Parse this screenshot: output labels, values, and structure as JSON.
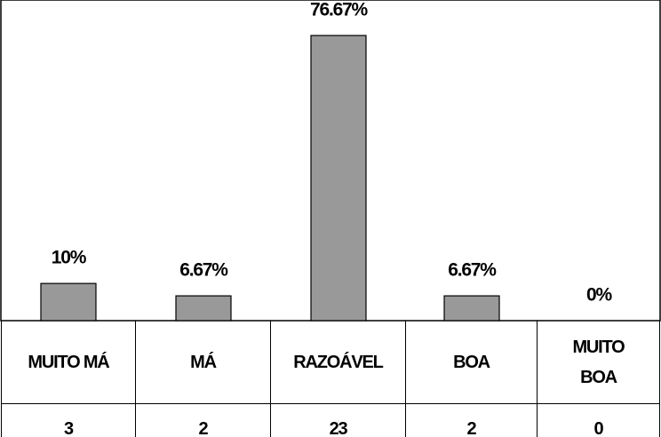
{
  "chart_data": {
    "type": "bar",
    "categories": [
      "MUITO MÁ",
      "MÁ",
      "RAZOÁVEL",
      "BOA",
      "MUITO BOA"
    ],
    "values": [
      10,
      6.67,
      76.67,
      6.67,
      0
    ],
    "value_labels": [
      "10%",
      "6.67%",
      "76.67%",
      "6.67%",
      "0%"
    ],
    "counts": [
      3,
      2,
      23,
      2,
      0
    ],
    "color": "#999999",
    "ylim": [
      0,
      80
    ]
  }
}
